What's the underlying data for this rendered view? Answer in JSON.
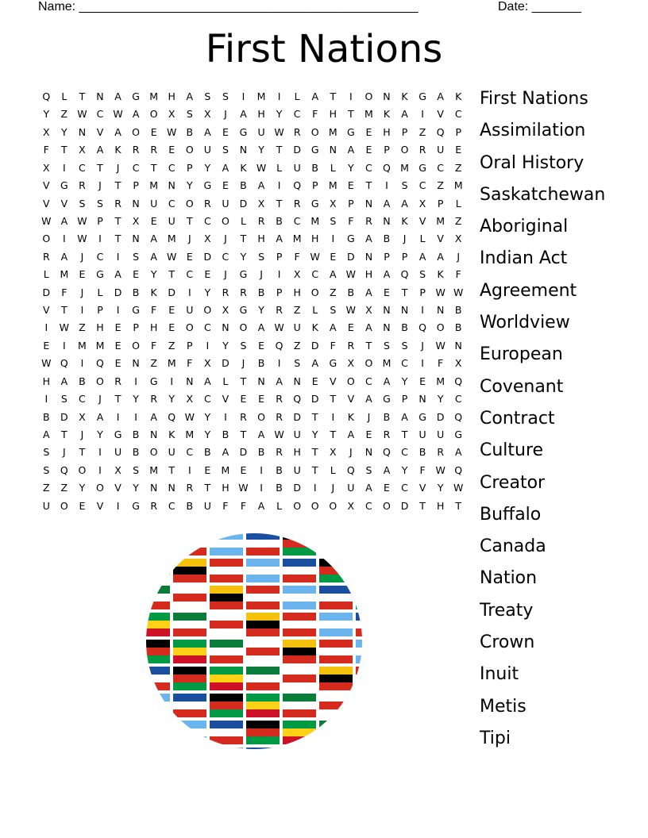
{
  "header": {
    "name_label": "Name: ________________________________________________",
    "date_label": "Date: _______"
  },
  "title": "First Nations",
  "grid": [
    "QLTNAGMHASSIMILATIONKGAK",
    "YZWCWAOXSXJAHYCFHTMKAIVC",
    "XYNVAOEWBAEGUWROMGEHPZQP",
    "FTXAKRREOUSNYTDGNAEPORUE",
    "XICTJCTCPYAKWLUBLYCQMGCZ",
    "VGRJTPMNYGEBAIQPMETISCZM",
    "VVSSRNUCORUDXTRGXPNAAXPL",
    "WAWPTXEUTCOLRBCMSFRNKVMZ",
    "OIWITNAMJXJTHAMHIGABJLVX",
    "RAJCISAWEDCYSPFWEDNPPAAJ",
    "LMEGAEYTCEJGJIXCAWHAQSKF",
    "DFJLDBKDIYRRBPHOZBAETPWW",
    "VTIPIGFEUOXGYRZLSWXNNINB",
    "IWZHEPHEOCNOAWUKAEANBQOB",
    "EIMMEOFZPIYSEQZDFRTSSJWN",
    "WQIQENZMFXDJBISAGXOMCIFX",
    "HABORIGINALTNANEVOCAYEMQ",
    "ISCJTYRYXCVEERQDTVAGPNYC",
    "BDXAIIAQWYIRORDTIKJBAGDQ",
    "ATJYGBNKMYBTAWUYTAERTUUG",
    "SJTIUBOUCBADBRHTXJNQCBRA",
    "SQOIXSMTIEMEIBUTLQSAYFWQ",
    "ZZYOVYNNRTHWIBDIJUAECVYW",
    "UOEVIGRCBUFFALOOOXCODTHT"
  ],
  "words": [
    "First Nations",
    "Assimilation",
    "Oral History",
    "Saskatchewan",
    "Aboriginal",
    "Indian Act",
    "Agreement",
    "Worldview",
    "European",
    "Covenant",
    "Contract",
    "Culture",
    "Creator",
    "Buffalo",
    "Canada",
    "Nation",
    "Treaty",
    "Crown",
    "Inuit",
    "Metis",
    "Tipi"
  ],
  "illustration": "globe-of-world-flags"
}
